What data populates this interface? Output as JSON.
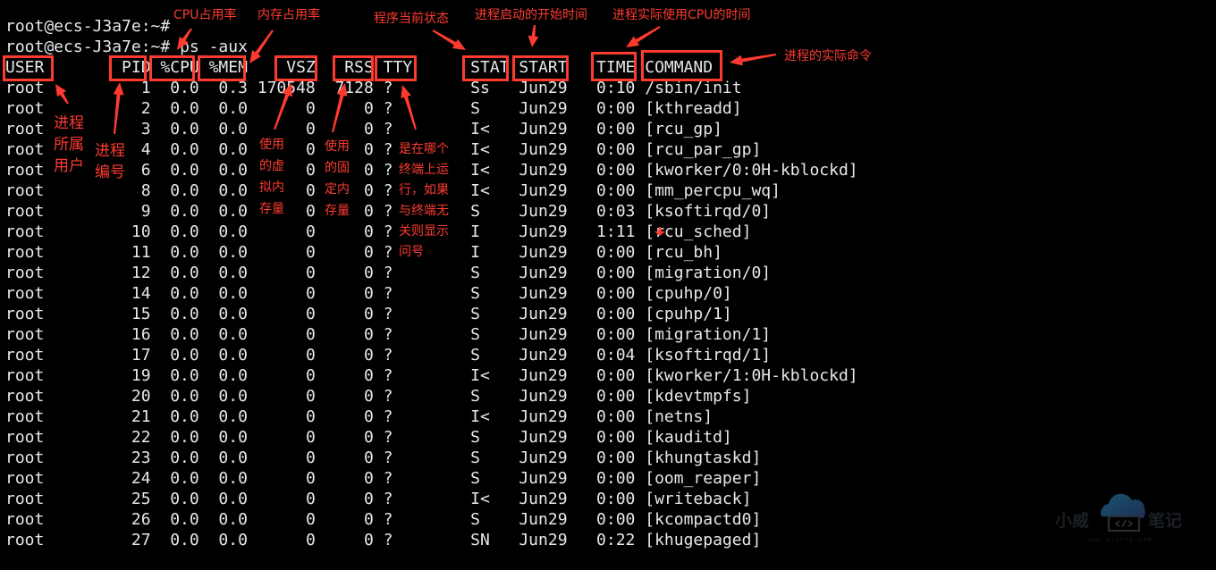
{
  "terminal": {
    "prompt_line_1": "root@ecs-J3a7e:~#",
    "prompt_line_2": "root@ecs-J3a7e:~# ps -aux",
    "headers": [
      "USER",
      "PID",
      "%CPU",
      "%MEM",
      "VSZ",
      "RSS",
      "TTY",
      "STAT",
      "START",
      "TIME",
      "COMMAND"
    ],
    "rows": [
      [
        "root",
        "1",
        "0.0",
        "0.3",
        "170548",
        "7128",
        "?",
        "Ss",
        "Jun29",
        "0:10",
        "/sbin/init"
      ],
      [
        "root",
        "2",
        "0.0",
        "0.0",
        "0",
        "0",
        "?",
        "S",
        "Jun29",
        "0:00",
        "[kthreadd]"
      ],
      [
        "root",
        "3",
        "0.0",
        "0.0",
        "0",
        "0",
        "?",
        "I<",
        "Jun29",
        "0:00",
        "[rcu_gp]"
      ],
      [
        "root",
        "4",
        "0.0",
        "0.0",
        "0",
        "0",
        "?",
        "I<",
        "Jun29",
        "0:00",
        "[rcu_par_gp]"
      ],
      [
        "root",
        "6",
        "0.0",
        "0.0",
        "0",
        "0",
        "?",
        "I<",
        "Jun29",
        "0:00",
        "[kworker/0:0H-kblockd]"
      ],
      [
        "root",
        "8",
        "0.0",
        "0.0",
        "0",
        "0",
        "?",
        "I<",
        "Jun29",
        "0:00",
        "[mm_percpu_wq]"
      ],
      [
        "root",
        "9",
        "0.0",
        "0.0",
        "0",
        "0",
        "?",
        "S",
        "Jun29",
        "0:03",
        "[ksoftirqd/0]"
      ],
      [
        "root",
        "10",
        "0.0",
        "0.0",
        "0",
        "0",
        "?",
        "I",
        "Jun29",
        "1:11",
        "[rcu_sched]"
      ],
      [
        "root",
        "11",
        "0.0",
        "0.0",
        "0",
        "0",
        "?",
        "I",
        "Jun29",
        "0:00",
        "[rcu_bh]"
      ],
      [
        "root",
        "12",
        "0.0",
        "0.0",
        "0",
        "0",
        "?",
        "S",
        "Jun29",
        "0:00",
        "[migration/0]"
      ],
      [
        "root",
        "14",
        "0.0",
        "0.0",
        "0",
        "0",
        "?",
        "S",
        "Jun29",
        "0:00",
        "[cpuhp/0]"
      ],
      [
        "root",
        "15",
        "0.0",
        "0.0",
        "0",
        "0",
        "?",
        "S",
        "Jun29",
        "0:00",
        "[cpuhp/1]"
      ],
      [
        "root",
        "16",
        "0.0",
        "0.0",
        "0",
        "0",
        "?",
        "S",
        "Jun29",
        "0:00",
        "[migration/1]"
      ],
      [
        "root",
        "17",
        "0.0",
        "0.0",
        "0",
        "0",
        "?",
        "S",
        "Jun29",
        "0:04",
        "[ksoftirqd/1]"
      ],
      [
        "root",
        "19",
        "0.0",
        "0.0",
        "0",
        "0",
        "?",
        "I<",
        "Jun29",
        "0:00",
        "[kworker/1:0H-kblockd]"
      ],
      [
        "root",
        "20",
        "0.0",
        "0.0",
        "0",
        "0",
        "?",
        "S",
        "Jun29",
        "0:00",
        "[kdevtmpfs]"
      ],
      [
        "root",
        "21",
        "0.0",
        "0.0",
        "0",
        "0",
        "?",
        "I<",
        "Jun29",
        "0:00",
        "[netns]"
      ],
      [
        "root",
        "22",
        "0.0",
        "0.0",
        "0",
        "0",
        "?",
        "S",
        "Jun29",
        "0:00",
        "[kauditd]"
      ],
      [
        "root",
        "23",
        "0.0",
        "0.0",
        "0",
        "0",
        "?",
        "S",
        "Jun29",
        "0:00",
        "[khungtaskd]"
      ],
      [
        "root",
        "24",
        "0.0",
        "0.0",
        "0",
        "0",
        "?",
        "S",
        "Jun29",
        "0:00",
        "[oom_reaper]"
      ],
      [
        "root",
        "25",
        "0.0",
        "0.0",
        "0",
        "0",
        "?",
        "I<",
        "Jun29",
        "0:00",
        "[writeback]"
      ],
      [
        "root",
        "26",
        "0.0",
        "0.0",
        "0",
        "0",
        "?",
        "S",
        "Jun29",
        "0:00",
        "[kcompactd0]"
      ],
      [
        "root",
        "27",
        "0.0",
        "0.0",
        "0",
        "0",
        "?",
        "SN",
        "Jun29",
        "0:22",
        "[khugepaged]"
      ]
    ]
  },
  "annotations": {
    "cpu": "CPU占用率",
    "mem": "内存占用率",
    "stat": "程序当前状态",
    "start": "进程启动的开始时间",
    "time": "进程实际使用CPU的时间",
    "command": "进程的实际命令",
    "user": [
      "进程",
      "所属",
      "用户"
    ],
    "pid": [
      "进程",
      "编号"
    ],
    "vsz": [
      "使用",
      "的虚",
      "拟内",
      "存量"
    ],
    "rss": [
      "使用",
      "的固",
      "定内",
      "存量"
    ],
    "tty": [
      "是在哪个",
      "终端上运",
      "行，如果",
      "与终端无",
      "关则显示",
      "问号"
    ]
  },
  "colors": {
    "annotation": "#ff3b30",
    "terminal_text": "#e6e8ea",
    "background": "#000000"
  },
  "watermark": {
    "left": "小威",
    "right": "笔记",
    "url": "www.xvnote.com",
    "icon": "cloud-code-icon"
  }
}
